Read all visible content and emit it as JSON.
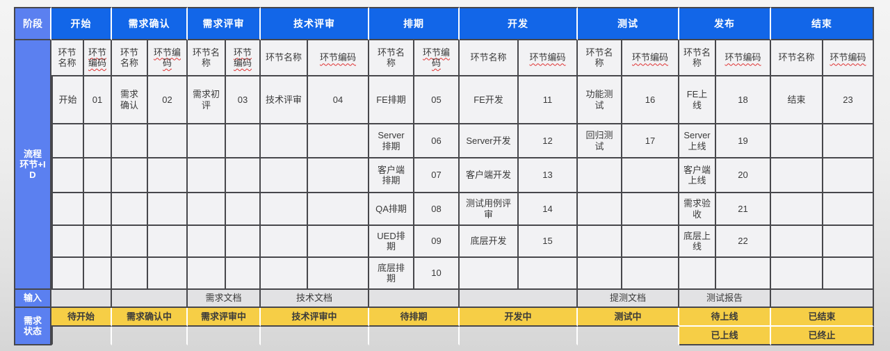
{
  "colors": {
    "phase_header_blue": "#1266e8",
    "label_blue": "#5b80f0",
    "status_yellow": "#f6ce46",
    "grid_line": "#47474b"
  },
  "table": {
    "corner_label": "阶段",
    "row_label": "流程环节+ID",
    "input_label": "输入",
    "status_label": "需求状态",
    "phases": [
      {
        "label": "开始"
      },
      {
        "label": "需求确认"
      },
      {
        "label": "需求评审"
      },
      {
        "label": "技术评审"
      },
      {
        "label": "排期"
      },
      {
        "label": "开发"
      },
      {
        "label": "测试"
      },
      {
        "label": "发布"
      },
      {
        "label": "结束"
      }
    ],
    "col_headers": {
      "name": "环节名称",
      "code": "环节编码"
    },
    "steps": [
      [
        {
          "name": "开始",
          "code": "01"
        },
        {
          "name": "需求确认",
          "code": "02"
        },
        {
          "name": "需求初评",
          "code": "03"
        },
        {
          "name": "技术评审",
          "code": "04"
        },
        {
          "name": "FE排期",
          "code": "05"
        },
        {
          "name": "FE开发",
          "code": "11"
        },
        {
          "name": "功能测试",
          "code": "16"
        },
        {
          "name": "FE上线",
          "code": "18"
        },
        {
          "name": "结束",
          "code": "23"
        }
      ],
      [
        null,
        null,
        null,
        null,
        {
          "name": "Server排期",
          "code": "06"
        },
        {
          "name": "Server开发",
          "code": "12"
        },
        {
          "name": "回归测试",
          "code": "17"
        },
        {
          "name": "Server上线",
          "code": "19"
        },
        null
      ],
      [
        null,
        null,
        null,
        null,
        {
          "name": "客户端排期",
          "code": "07"
        },
        {
          "name": "客户端开发",
          "code": "13"
        },
        null,
        {
          "name": "客户端上线",
          "code": "20"
        },
        null
      ],
      [
        null,
        null,
        null,
        null,
        {
          "name": "QA排期",
          "code": "08"
        },
        {
          "name": "测试用例评审",
          "code": "14"
        },
        null,
        {
          "name": "需求验收",
          "code": "21"
        },
        null
      ],
      [
        null,
        null,
        null,
        null,
        {
          "name": "UED排期",
          "code": "09"
        },
        {
          "name": "底层开发",
          "code": "15"
        },
        null,
        {
          "name": "底层上线",
          "code": "22"
        },
        null
      ],
      [
        null,
        null,
        null,
        null,
        {
          "name": "底层排期",
          "code": "10"
        },
        null,
        null,
        null,
        null
      ]
    ],
    "inputs": [
      "",
      "",
      "需求文档",
      "技术文档",
      "",
      "",
      "提测文档",
      "测试报告",
      ""
    ],
    "status_row1": [
      "待开始",
      "需求确认中",
      "需求评审中",
      "技术评审中",
      "待排期",
      "开发中",
      "测试中",
      "待上线",
      "已结束"
    ],
    "status_row2": [
      "",
      "",
      "",
      "",
      "",
      "",
      "",
      "已上线",
      "已终止"
    ]
  }
}
